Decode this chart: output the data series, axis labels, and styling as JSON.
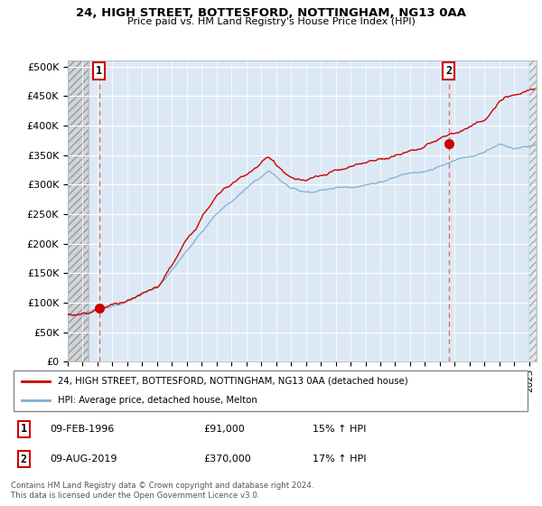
{
  "title": "24, HIGH STREET, BOTTESFORD, NOTTINGHAM, NG13 0AA",
  "subtitle": "Price paid vs. HM Land Registry's House Price Index (HPI)",
  "xlim": [
    1994.0,
    2025.5
  ],
  "ylim": [
    0,
    510000
  ],
  "yticks": [
    0,
    50000,
    100000,
    150000,
    200000,
    250000,
    300000,
    350000,
    400000,
    450000,
    500000
  ],
  "ytick_labels": [
    "£0",
    "£50K",
    "£100K",
    "£150K",
    "£200K",
    "£250K",
    "£300K",
    "£350K",
    "£400K",
    "£450K",
    "£500K"
  ],
  "background_plot": "#dce9f5",
  "hatch_end_year": 1995.4,
  "sale1_year": 1996.1,
  "sale1_price": 91000,
  "sale2_year": 2019.6,
  "sale2_price": 370000,
  "legend_label1": "24, HIGH STREET, BOTTESFORD, NOTTINGHAM, NG13 0AA (detached house)",
  "legend_label2": "HPI: Average price, detached house, Melton",
  "ann1_date": "09-FEB-1996",
  "ann1_price": "£91,000",
  "ann1_hpi": "15% ↑ HPI",
  "ann2_date": "09-AUG-2019",
  "ann2_price": "£370,000",
  "ann2_hpi": "17% ↑ HPI",
  "footer": "Contains HM Land Registry data © Crown copyright and database right 2024.\nThis data is licensed under the Open Government Licence v3.0.",
  "line_color_price": "#cc0000",
  "line_color_hpi": "#7ab0d4",
  "dashed_line_color": "#e06060",
  "marker_color": "#cc0000"
}
